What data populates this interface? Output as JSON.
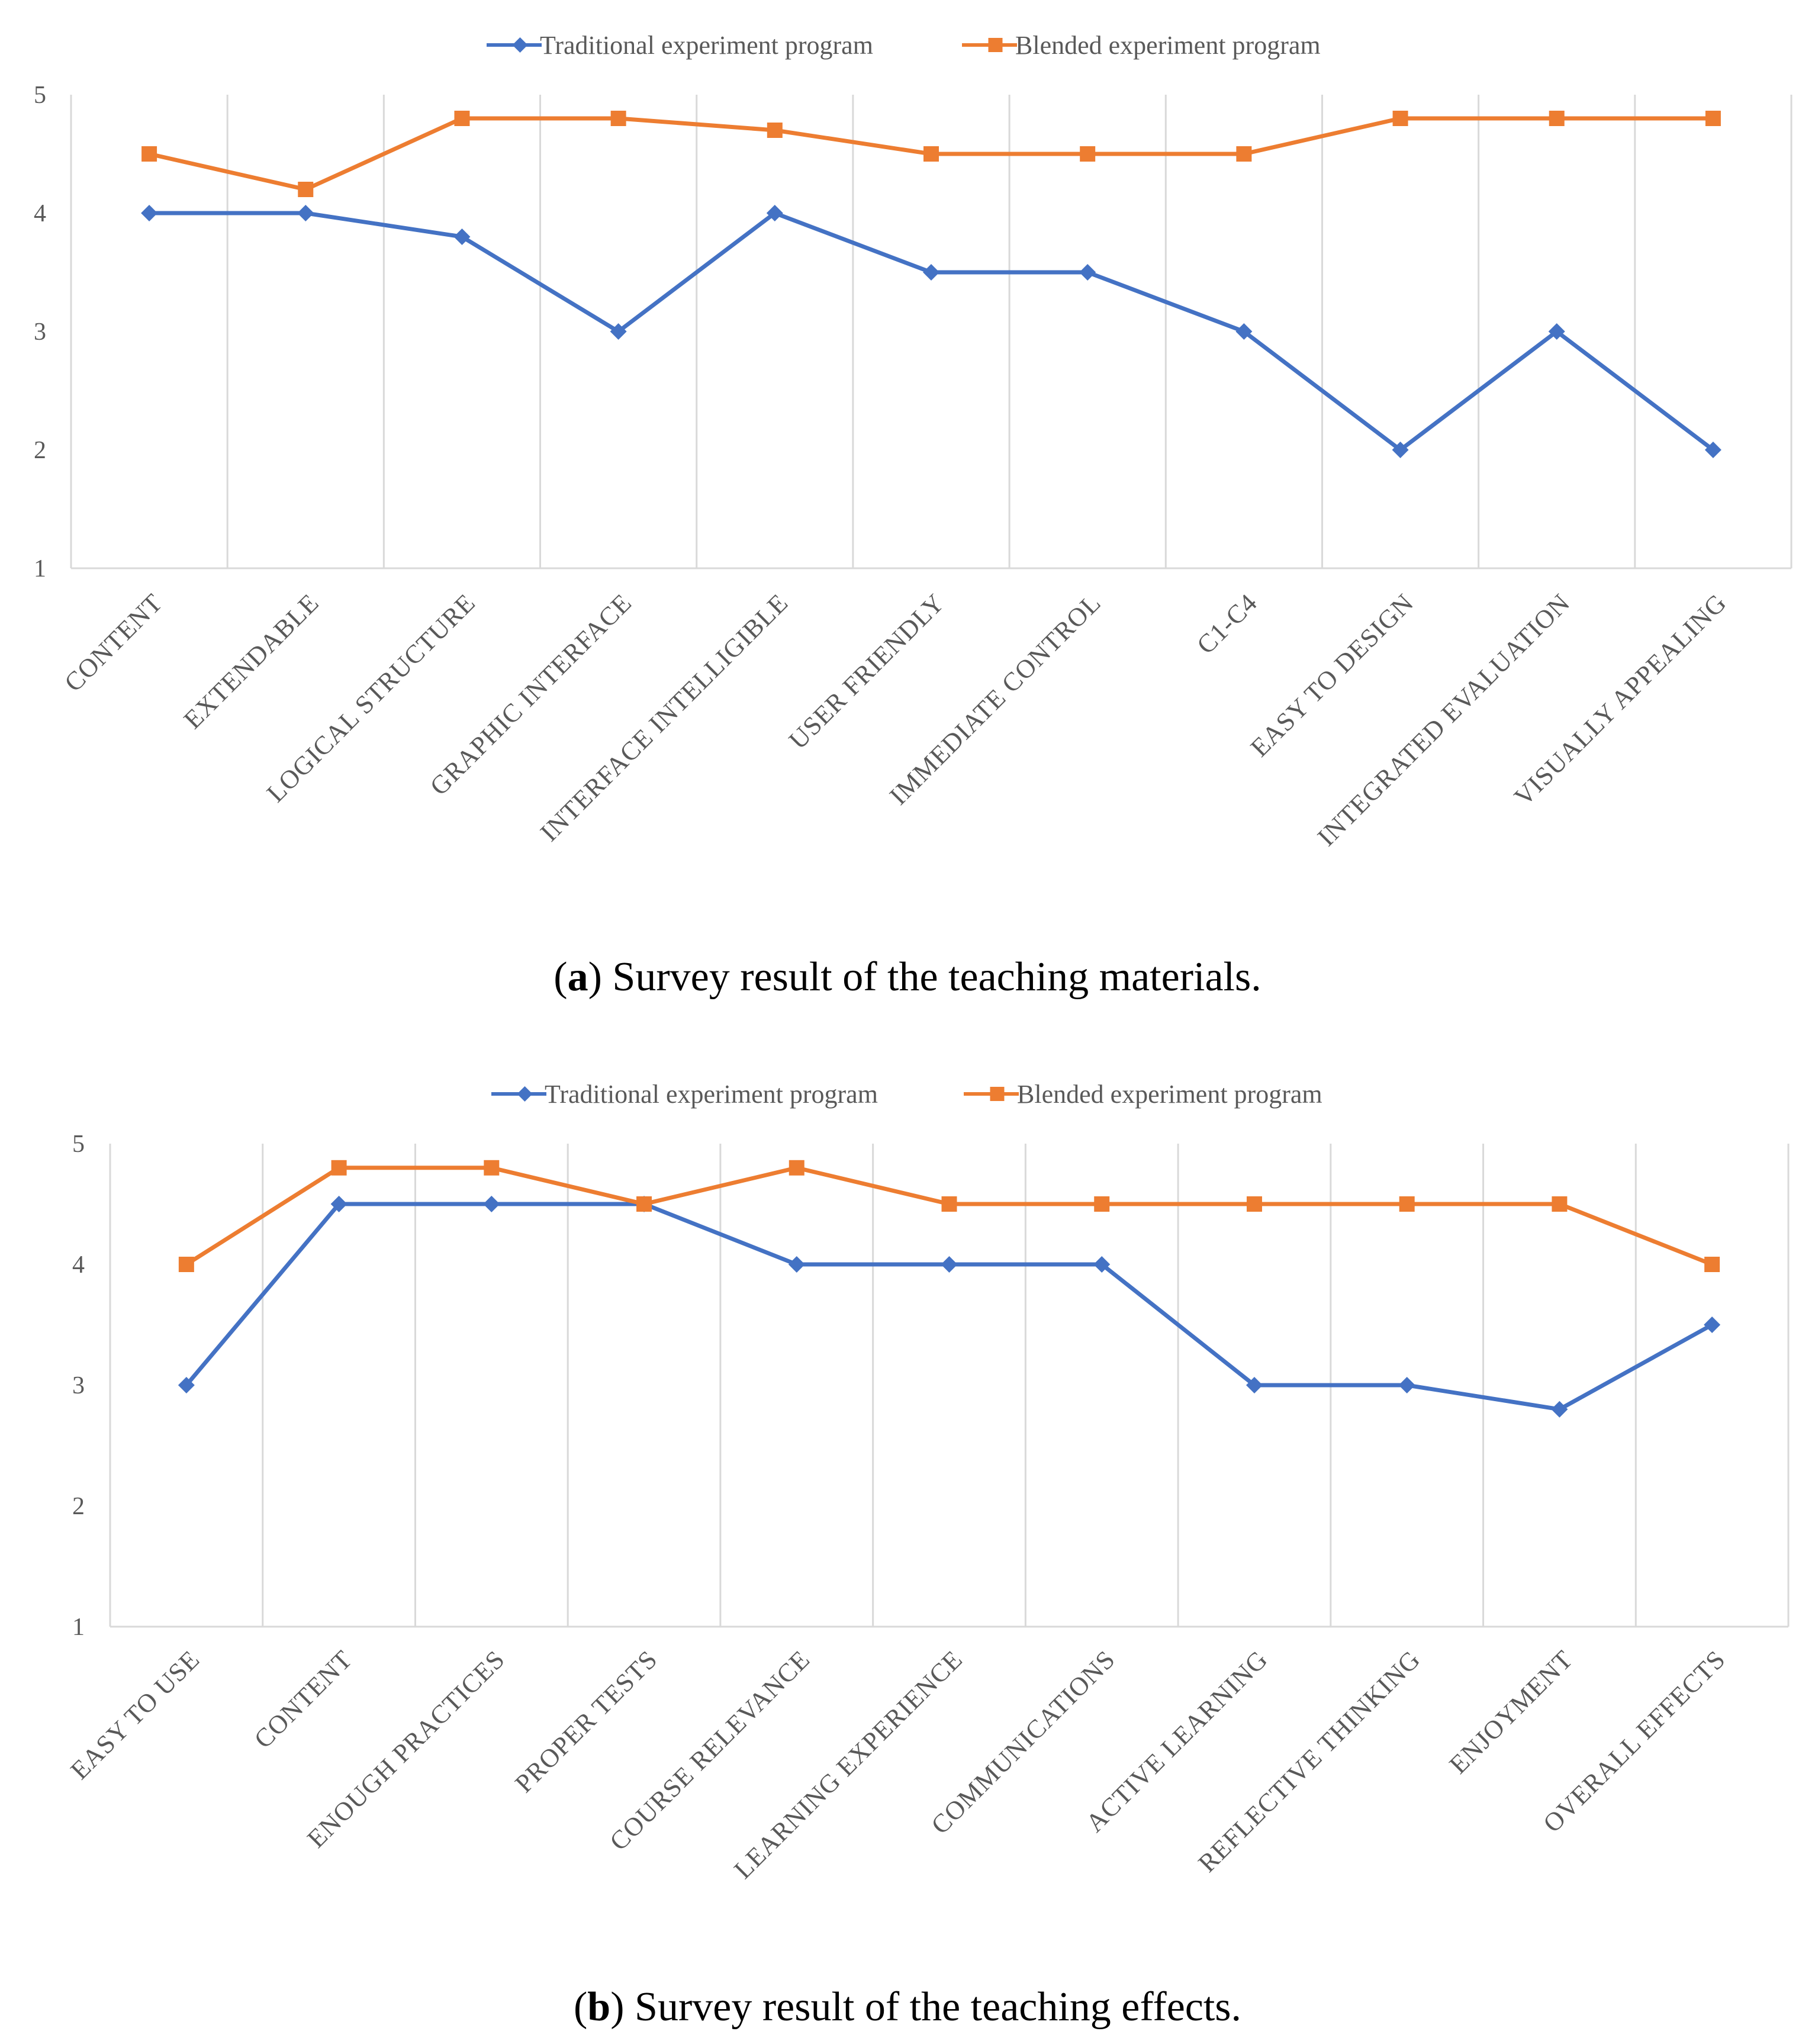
{
  "chart_data": [
    {
      "type": "line",
      "caption": {
        "open": "(",
        "letter": "a",
        "rest": ") Survey result of the teaching materials."
      },
      "categories": [
        "CONTENT",
        "EXTENDABLE",
        "LOGICAL STRUCTURE",
        "GRAPHIC INTERFACE",
        "INTERFACE INTELLIGIBLE",
        "USER FRIENDLY",
        "IMMEDIATE CONTROL",
        "C1-C4",
        "EASY TO DESIGN",
        "INTEGRATED EVALUATION",
        "VISUALLY APPEALING"
      ],
      "series": [
        {
          "name": "Traditional experiment program",
          "color": "#4472C4",
          "marker": "diamond",
          "values": [
            4,
            4,
            3.8,
            3,
            4,
            3.5,
            3.5,
            3,
            2,
            3,
            2
          ]
        },
        {
          "name": "Blended experiment program",
          "color": "#ED7D31",
          "marker": "square",
          "values": [
            4.5,
            4.2,
            4.8,
            4.8,
            4.7,
            4.5,
            4.5,
            4.5,
            4.8,
            4.8,
            4.8
          ]
        }
      ],
      "ylim": [
        1,
        5
      ],
      "yticks": [
        "1",
        "2",
        "3",
        "4",
        "5"
      ],
      "legend": "top-center",
      "grid": "vertical"
    },
    {
      "type": "line",
      "caption": {
        "open": "(",
        "letter": "b",
        "rest": ") Survey result of the teaching effects."
      },
      "categories": [
        "EASY TO USE",
        "CONTENT",
        "ENOUGH PRACTICES",
        "PROPER TESTS",
        "COURSE RELEVANCE",
        "LEARNING EXPERIENCE",
        "COMMUNICATIONS",
        "ACTIVE LEARNING",
        "REFLECTIVE THINKING",
        "ENJOYMENT",
        "OVERALL EFFECTS"
      ],
      "series": [
        {
          "name": "Traditional experiment program",
          "color": "#4472C4",
          "marker": "diamond",
          "values": [
            3,
            4.5,
            4.5,
            4.5,
            4,
            4,
            4,
            3,
            3,
            2.8,
            3.5
          ]
        },
        {
          "name": "Blended experiment program",
          "color": "#ED7D31",
          "marker": "square",
          "values": [
            4,
            4.8,
            4.8,
            4.5,
            4.8,
            4.5,
            4.5,
            4.5,
            4.5,
            4.5,
            4
          ]
        }
      ],
      "ylim": [
        1,
        5
      ],
      "yticks": [
        "1",
        "2",
        "3",
        "4",
        "5"
      ],
      "legend": "top-center",
      "grid": "vertical"
    }
  ]
}
